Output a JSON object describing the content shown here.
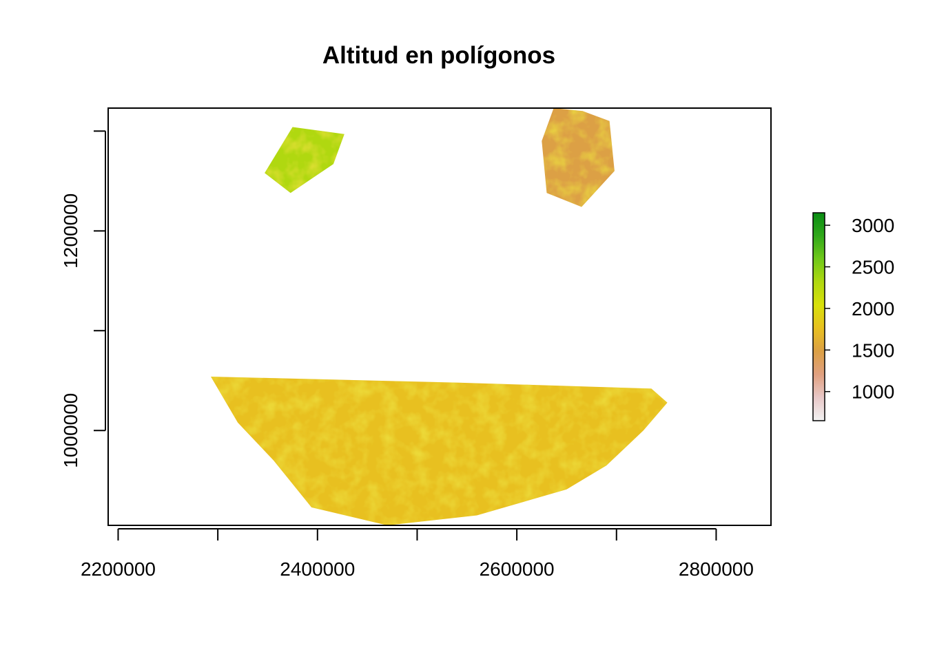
{
  "chart_data": {
    "type": "heatmap",
    "title": "Altitud en polígonos",
    "xlabel": "",
    "ylabel": "",
    "x_range": [
      2190000,
      2855000
    ],
    "y_range": [
      905000,
      1323000
    ],
    "x_ticks": [
      2200000,
      2300000,
      2400000,
      2500000,
      2600000,
      2700000,
      2800000
    ],
    "x_tick_labels": [
      "2200000",
      "",
      "2400000",
      "",
      "2600000",
      "",
      "2800000"
    ],
    "y_ticks": [
      1000000,
      1100000,
      1200000,
      1300000
    ],
    "y_tick_labels": [
      "1000000",
      "",
      "1200000",
      ""
    ],
    "grid": false,
    "legend": {
      "position": "right",
      "range": [
        650,
        3150
      ],
      "tick_values": [
        1000,
        1500,
        2000,
        2500,
        3000
      ],
      "tick_labels": [
        "1000",
        "1500",
        "2000",
        "2500",
        "3000"
      ],
      "colors": [
        "#f2f2f2",
        "#e8c8c8",
        "#e0a080",
        "#dca045",
        "#e8c020",
        "#d8e00a",
        "#b0d810",
        "#70c81a",
        "#30a81a",
        "#0a8c14"
      ]
    },
    "polygons": [
      {
        "name": "",
        "dominant_elevation": 2400,
        "outline": [
          [
            2347000,
            1258000
          ],
          [
            2375000,
            1304000
          ],
          [
            2427000,
            1297000
          ],
          [
            2416000,
            1267000
          ],
          [
            2373000,
            1238000
          ]
        ]
      },
      {
        "name": "",
        "dominant_elevation": 1550,
        "outline": [
          [
            2637000,
            1323000
          ],
          [
            2666000,
            1320000
          ],
          [
            2693000,
            1310000
          ],
          [
            2698000,
            1260000
          ],
          [
            2665000,
            1224000
          ],
          [
            2630000,
            1238000
          ],
          [
            2625000,
            1290000
          ]
        ]
      },
      {
        "name": "",
        "dominant_elevation": 1800,
        "outline": [
          [
            2293000,
            1054000
          ],
          [
            2542000,
            1048000
          ],
          [
            2735000,
            1042000
          ],
          [
            2751000,
            1028000
          ],
          [
            2727000,
            1000000
          ],
          [
            2690000,
            965000
          ],
          [
            2650000,
            941000
          ],
          [
            2560000,
            915000
          ],
          [
            2470000,
            905000
          ],
          [
            2394000,
            923000
          ],
          [
            2356000,
            970000
          ],
          [
            2320000,
            1008000
          ]
        ]
      }
    ]
  }
}
